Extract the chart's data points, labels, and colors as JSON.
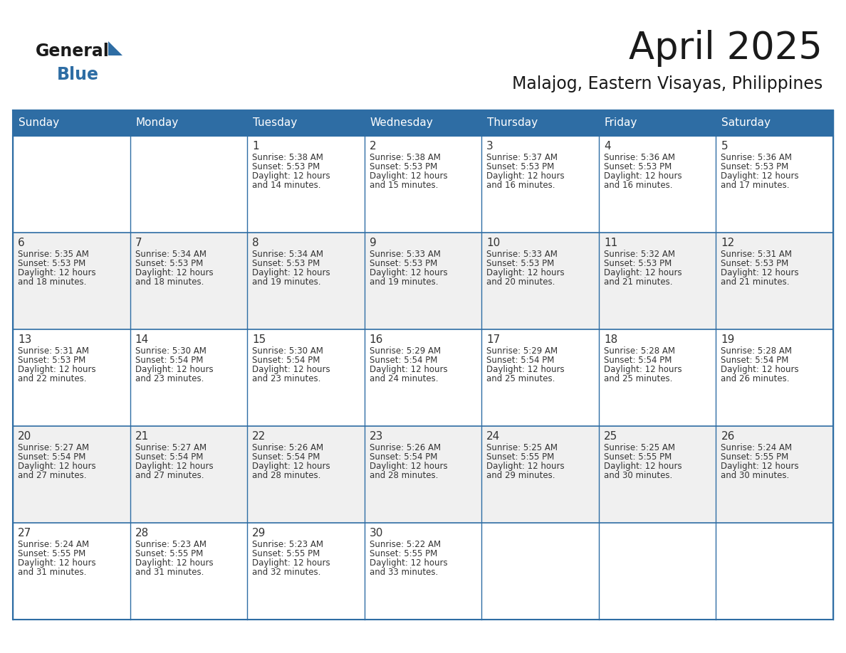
{
  "title": "April 2025",
  "subtitle": "Malajog, Eastern Visayas, Philippines",
  "header_bg": "#2E6DA4",
  "header_text": "#FFFFFF",
  "row_bg_odd": "#F0F0F0",
  "row_bg_even": "#FFFFFF",
  "border_color": "#2E6DA4",
  "text_color": "#333333",
  "days_of_week": [
    "Sunday",
    "Monday",
    "Tuesday",
    "Wednesday",
    "Thursday",
    "Friday",
    "Saturday"
  ],
  "calendar_data": [
    [
      {
        "day": "",
        "sunrise": "",
        "sunset": "",
        "daylight": ""
      },
      {
        "day": "",
        "sunrise": "",
        "sunset": "",
        "daylight": ""
      },
      {
        "day": "1",
        "sunrise": "Sunrise: 5:38 AM",
        "sunset": "Sunset: 5:53 PM",
        "daylight": "Daylight: 12 hours\nand 14 minutes."
      },
      {
        "day": "2",
        "sunrise": "Sunrise: 5:38 AM",
        "sunset": "Sunset: 5:53 PM",
        "daylight": "Daylight: 12 hours\nand 15 minutes."
      },
      {
        "day": "3",
        "sunrise": "Sunrise: 5:37 AM",
        "sunset": "Sunset: 5:53 PM",
        "daylight": "Daylight: 12 hours\nand 16 minutes."
      },
      {
        "day": "4",
        "sunrise": "Sunrise: 5:36 AM",
        "sunset": "Sunset: 5:53 PM",
        "daylight": "Daylight: 12 hours\nand 16 minutes."
      },
      {
        "day": "5",
        "sunrise": "Sunrise: 5:36 AM",
        "sunset": "Sunset: 5:53 PM",
        "daylight": "Daylight: 12 hours\nand 17 minutes."
      }
    ],
    [
      {
        "day": "6",
        "sunrise": "Sunrise: 5:35 AM",
        "sunset": "Sunset: 5:53 PM",
        "daylight": "Daylight: 12 hours\nand 18 minutes."
      },
      {
        "day": "7",
        "sunrise": "Sunrise: 5:34 AM",
        "sunset": "Sunset: 5:53 PM",
        "daylight": "Daylight: 12 hours\nand 18 minutes."
      },
      {
        "day": "8",
        "sunrise": "Sunrise: 5:34 AM",
        "sunset": "Sunset: 5:53 PM",
        "daylight": "Daylight: 12 hours\nand 19 minutes."
      },
      {
        "day": "9",
        "sunrise": "Sunrise: 5:33 AM",
        "sunset": "Sunset: 5:53 PM",
        "daylight": "Daylight: 12 hours\nand 19 minutes."
      },
      {
        "day": "10",
        "sunrise": "Sunrise: 5:33 AM",
        "sunset": "Sunset: 5:53 PM",
        "daylight": "Daylight: 12 hours\nand 20 minutes."
      },
      {
        "day": "11",
        "sunrise": "Sunrise: 5:32 AM",
        "sunset": "Sunset: 5:53 PM",
        "daylight": "Daylight: 12 hours\nand 21 minutes."
      },
      {
        "day": "12",
        "sunrise": "Sunrise: 5:31 AM",
        "sunset": "Sunset: 5:53 PM",
        "daylight": "Daylight: 12 hours\nand 21 minutes."
      }
    ],
    [
      {
        "day": "13",
        "sunrise": "Sunrise: 5:31 AM",
        "sunset": "Sunset: 5:53 PM",
        "daylight": "Daylight: 12 hours\nand 22 minutes."
      },
      {
        "day": "14",
        "sunrise": "Sunrise: 5:30 AM",
        "sunset": "Sunset: 5:54 PM",
        "daylight": "Daylight: 12 hours\nand 23 minutes."
      },
      {
        "day": "15",
        "sunrise": "Sunrise: 5:30 AM",
        "sunset": "Sunset: 5:54 PM",
        "daylight": "Daylight: 12 hours\nand 23 minutes."
      },
      {
        "day": "16",
        "sunrise": "Sunrise: 5:29 AM",
        "sunset": "Sunset: 5:54 PM",
        "daylight": "Daylight: 12 hours\nand 24 minutes."
      },
      {
        "day": "17",
        "sunrise": "Sunrise: 5:29 AM",
        "sunset": "Sunset: 5:54 PM",
        "daylight": "Daylight: 12 hours\nand 25 minutes."
      },
      {
        "day": "18",
        "sunrise": "Sunrise: 5:28 AM",
        "sunset": "Sunset: 5:54 PM",
        "daylight": "Daylight: 12 hours\nand 25 minutes."
      },
      {
        "day": "19",
        "sunrise": "Sunrise: 5:28 AM",
        "sunset": "Sunset: 5:54 PM",
        "daylight": "Daylight: 12 hours\nand 26 minutes."
      }
    ],
    [
      {
        "day": "20",
        "sunrise": "Sunrise: 5:27 AM",
        "sunset": "Sunset: 5:54 PM",
        "daylight": "Daylight: 12 hours\nand 27 minutes."
      },
      {
        "day": "21",
        "sunrise": "Sunrise: 5:27 AM",
        "sunset": "Sunset: 5:54 PM",
        "daylight": "Daylight: 12 hours\nand 27 minutes."
      },
      {
        "day": "22",
        "sunrise": "Sunrise: 5:26 AM",
        "sunset": "Sunset: 5:54 PM",
        "daylight": "Daylight: 12 hours\nand 28 minutes."
      },
      {
        "day": "23",
        "sunrise": "Sunrise: 5:26 AM",
        "sunset": "Sunset: 5:54 PM",
        "daylight": "Daylight: 12 hours\nand 28 minutes."
      },
      {
        "day": "24",
        "sunrise": "Sunrise: 5:25 AM",
        "sunset": "Sunset: 5:55 PM",
        "daylight": "Daylight: 12 hours\nand 29 minutes."
      },
      {
        "day": "25",
        "sunrise": "Sunrise: 5:25 AM",
        "sunset": "Sunset: 5:55 PM",
        "daylight": "Daylight: 12 hours\nand 30 minutes."
      },
      {
        "day": "26",
        "sunrise": "Sunrise: 5:24 AM",
        "sunset": "Sunset: 5:55 PM",
        "daylight": "Daylight: 12 hours\nand 30 minutes."
      }
    ],
    [
      {
        "day": "27",
        "sunrise": "Sunrise: 5:24 AM",
        "sunset": "Sunset: 5:55 PM",
        "daylight": "Daylight: 12 hours\nand 31 minutes."
      },
      {
        "day": "28",
        "sunrise": "Sunrise: 5:23 AM",
        "sunset": "Sunset: 5:55 PM",
        "daylight": "Daylight: 12 hours\nand 31 minutes."
      },
      {
        "day": "29",
        "sunrise": "Sunrise: 5:23 AM",
        "sunset": "Sunset: 5:55 PM",
        "daylight": "Daylight: 12 hours\nand 32 minutes."
      },
      {
        "day": "30",
        "sunrise": "Sunrise: 5:22 AM",
        "sunset": "Sunset: 5:55 PM",
        "daylight": "Daylight: 12 hours\nand 33 minutes."
      },
      {
        "day": "",
        "sunrise": "",
        "sunset": "",
        "daylight": ""
      },
      {
        "day": "",
        "sunrise": "",
        "sunset": "",
        "daylight": ""
      },
      {
        "day": "",
        "sunrise": "",
        "sunset": "",
        "daylight": ""
      }
    ]
  ]
}
